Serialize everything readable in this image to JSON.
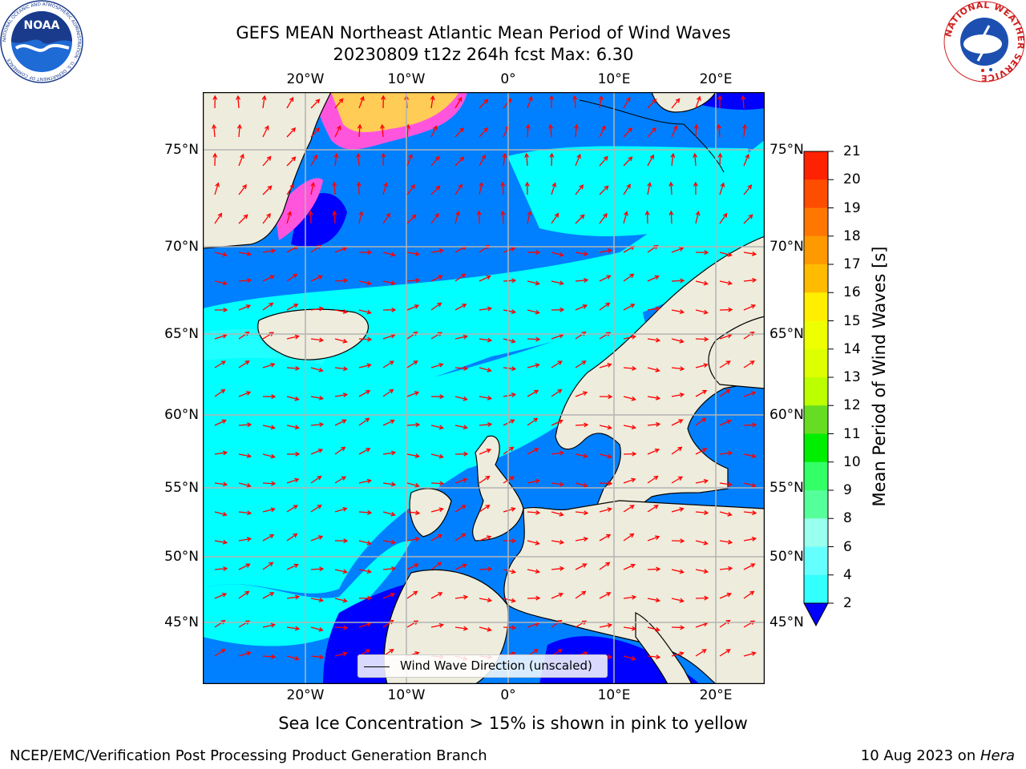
{
  "title": {
    "line1": "GEFS MEAN Northeast Atlantic Mean Period of Wind Waves",
    "line2": "20230809 t12z 264h fcst   Max: 6.30"
  },
  "map": {
    "lon_labels": [
      "20°W",
      "10°W",
      "0°",
      "10°E",
      "20°E"
    ],
    "lat_labels": [
      "75°N",
      "70°N",
      "65°N",
      "60°N",
      "55°N",
      "50°N",
      "45°N"
    ],
    "legend_label": "Wind Wave Direction (unscaled)",
    "colors": {
      "land": "#eeecdc",
      "coast": "#000000",
      "grid": "#b4b4b4",
      "arrow": "#ff0000",
      "ice_pink": "#ff55dd",
      "ice_yellow": "#ffcc55"
    }
  },
  "colorbar": {
    "title": "Mean Period of Wind Waves [s]",
    "levels": [
      "21",
      "20",
      "19",
      "18",
      "17",
      "16",
      "15",
      "14",
      "13",
      "12",
      "11",
      "10",
      "9",
      "8",
      "6",
      "4",
      "2"
    ],
    "colors": [
      "#ff0000",
      "#ff2200",
      "#ff4d00",
      "#ff7700",
      "#ff9900",
      "#ffbb00",
      "#ffee00",
      "#eeff00",
      "#ddff00",
      "#bbff00",
      "#66dd22",
      "#00ee00",
      "#33ff66",
      "#55ff99",
      "#99ffee",
      "#66ffff",
      "#33ffff",
      "#00ffff",
      "#0080ff",
      "#0000ff"
    ]
  },
  "logos": {
    "noaa_text": "NOAA",
    "noaa_ring": "NATIONAL OCEANIC AND ATMOSPHERIC ADMINISTRATION · U.S. DEPARTMENT OF COMMERCE",
    "nws_ring": "NATIONAL WEATHER SERVICE"
  },
  "footer": {
    "ice_note": "Sea Ice Concentration > 15% is shown in pink to yellow",
    "branch": "NCEP/EMC/Verification Post Processing Product Generation Branch",
    "date": "10 Aug 2023 on ",
    "host": "Hera"
  }
}
